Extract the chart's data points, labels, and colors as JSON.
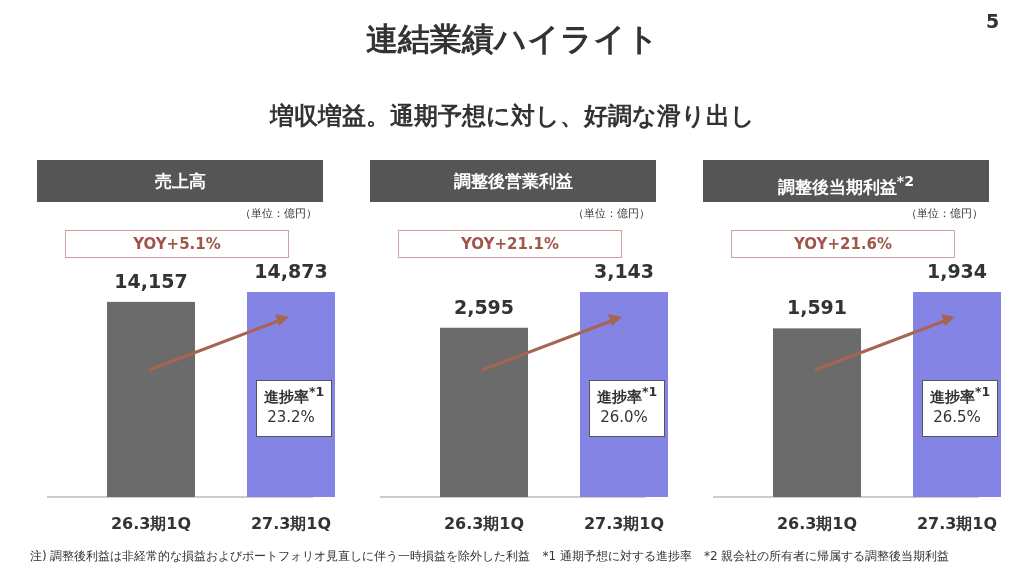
{
  "chart_data": [
    {
      "type": "bar",
      "title": "売上高",
      "categories": [
        "26.3期1Q",
        "27.3期1Q"
      ],
      "values": [
        14157,
        14873
      ],
      "colors": [
        "#6b6b6b",
        "#8484e4"
      ],
      "data_labels": true,
      "value_labels": [
        "14,157",
        "14,873"
      ],
      "annotations": [
        "（単位：億円）",
        "YOY+5.1%",
        "進捗率$^{*1}$",
        "23.2%",
        "連結業績ハイライト",
        "増収増益。通期予想に対し、好調な滑り出し",
        "注) 調整後利益は非経常的な損益およびポートフォリオ見直しに伴う一時損益を除外した利益　*1 通期予想に対する進捗率　*2 親会社の所有者に帰属する調整後当期利益",
        "5"
      ]
    },
    {
      "type": "bar",
      "title": "調整後営業利益",
      "categories": [
        "26.3期1Q",
        "27.3期1Q"
      ],
      "values": [
        2595,
        3143
      ],
      "colors": [
        "#6b6b6b",
        "#8484e4"
      ],
      "data_labels": true,
      "value_labels": [
        "2,595",
        "3,143"
      ],
      "annotations": [
        "（単位：億円）",
        "YOY+21.1%",
        "進捗率$^{*1}$",
        "26.0%"
      ]
    },
    {
      "type": "bar",
      "title": "調整後当期利益$^{*2}$",
      "categories": [
        "26.3期1Q",
        "27.3期1Q"
      ],
      "values": [
        1591,
        1934
      ],
      "colors": [
        "#6b6b6b",
        "#8484e4"
      ],
      "data_labels": true,
      "value_labels": [
        "1,591",
        "1,934"
      ],
      "annotations": [
        "（単位：億円）",
        "YOY+21.6%",
        "進捗率$^{*1}$",
        "26.5%"
      ]
    }
  ]
}
